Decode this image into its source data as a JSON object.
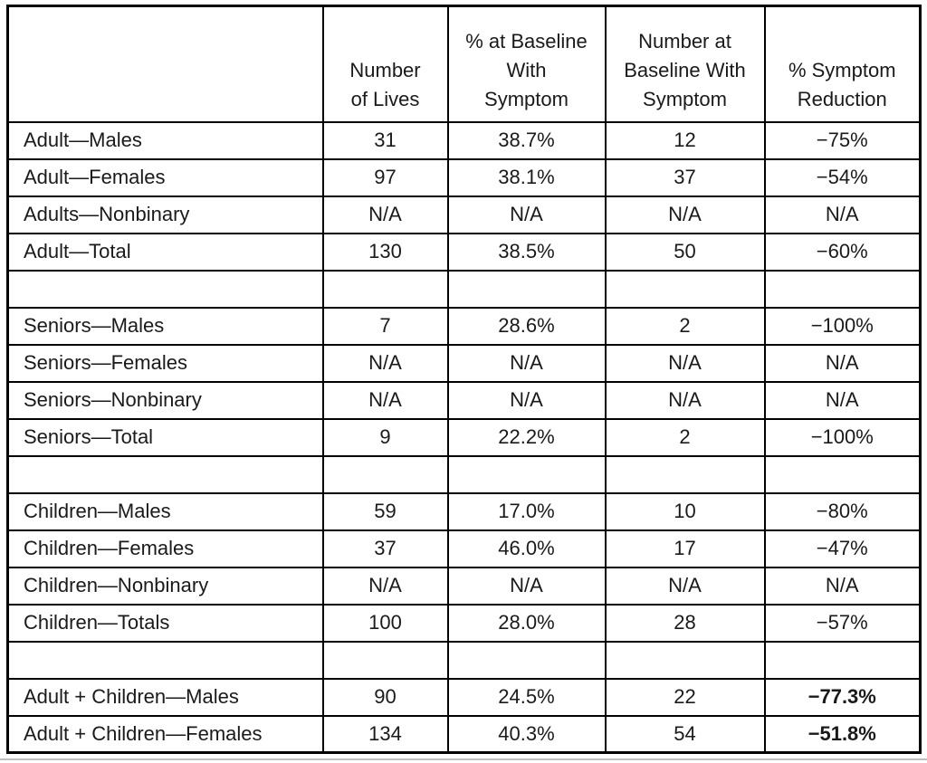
{
  "table": {
    "columns": [
      {
        "id": "category",
        "label": ""
      },
      {
        "id": "number-of-lives",
        "label": "Number\nof Lives"
      },
      {
        "id": "pct-at-baseline-with-symptom",
        "label": "% at Baseline\nWith\nSymptom"
      },
      {
        "id": "number-at-baseline-with-symptom",
        "label": "Number at\nBaseline With\nSymptom"
      },
      {
        "id": "pct-symptom-reduction",
        "label": "% Symptom\nReduction"
      }
    ],
    "rows": [
      {
        "type": "data",
        "label": "Adult—Males",
        "values": [
          "31",
          "38.7%",
          "12",
          "−75%"
        ]
      },
      {
        "type": "data",
        "label": "Adult—Females",
        "values": [
          "97",
          "38.1%",
          "37",
          "−54%"
        ]
      },
      {
        "type": "data",
        "label": "Adults—Nonbinary",
        "values": [
          "N/A",
          "N/A",
          "N/A",
          "N/A"
        ]
      },
      {
        "type": "data",
        "label": "Adult—Total",
        "values": [
          "130",
          "38.5%",
          "50",
          "−60%"
        ]
      },
      {
        "type": "spacer"
      },
      {
        "type": "data",
        "label": "Seniors—Males",
        "values": [
          "7",
          "28.6%",
          "2",
          "−100%"
        ]
      },
      {
        "type": "data",
        "label": "Seniors—Females",
        "values": [
          "N/A",
          "N/A",
          "N/A",
          "N/A"
        ]
      },
      {
        "type": "data",
        "label": "Seniors—Nonbinary",
        "values": [
          "N/A",
          "N/A",
          "N/A",
          "N/A"
        ]
      },
      {
        "type": "data",
        "label": "Seniors—Total",
        "values": [
          "9",
          "22.2%",
          "2",
          "−100%"
        ]
      },
      {
        "type": "spacer"
      },
      {
        "type": "data",
        "label": "Children—Males",
        "values": [
          "59",
          "17.0%",
          "10",
          "−80%"
        ]
      },
      {
        "type": "data",
        "label": "Children—Females",
        "values": [
          "37",
          "46.0%",
          "17",
          "−47%"
        ]
      },
      {
        "type": "data",
        "label": "Children—Nonbinary",
        "values": [
          "N/A",
          "N/A",
          "N/A",
          "N/A"
        ]
      },
      {
        "type": "data",
        "label": "Children—Totals",
        "values": [
          "100",
          "28.0%",
          "28",
          "−57%"
        ]
      },
      {
        "type": "spacer"
      },
      {
        "type": "data",
        "label": "Adult + Children—Males",
        "values": [
          "90",
          "24.5%",
          "22",
          "−77.3%"
        ],
        "bold_last": true
      },
      {
        "type": "data",
        "label": "Adult + Children—Females",
        "values": [
          "134",
          "40.3%",
          "54",
          "−51.8%"
        ],
        "bold_last": true
      }
    ],
    "colors": {
      "border": "#000000",
      "text": "#1a1a1a",
      "background": "#ffffff",
      "scan_shadow": "#a9a9a9"
    }
  }
}
